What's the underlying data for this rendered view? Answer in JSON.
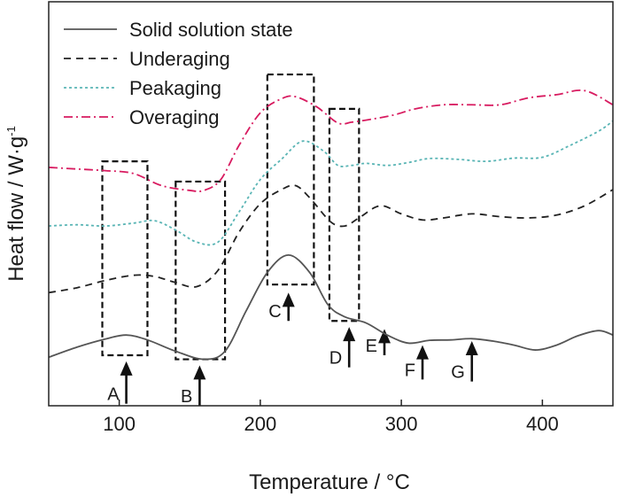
{
  "chart_data": {
    "type": "line",
    "xlabel": "Temperature / °C",
    "ylabel": "Heat flow / W·g",
    "ylabel_superscript": "-1",
    "xlim": [
      50,
      450
    ],
    "ylim": [
      0,
      100
    ],
    "xticks": [
      100,
      200,
      300,
      400
    ],
    "yticks": [],
    "grid": false,
    "legend_position": "top-left",
    "series": [
      {
        "name": "Solid solution state",
        "color": "#555555",
        "dash": "solid",
        "x": [
          50,
          70,
          90,
          105,
          120,
          140,
          160,
          175,
          190,
          205,
          220,
          235,
          248,
          260,
          275,
          290,
          305,
          320,
          335,
          350,
          365,
          380,
          395,
          410,
          425,
          440,
          450
        ],
        "y": [
          12,
          14.5,
          16.5,
          17.5,
          16.3,
          13.5,
          11.5,
          13.5,
          23.5,
          33,
          37.3,
          33,
          25,
          22,
          20.5,
          17.5,
          15.5,
          16.2,
          16.3,
          16.6,
          16,
          15,
          13.8,
          15,
          17.3,
          18.6,
          17.5
        ]
      },
      {
        "name": "Underaging",
        "color": "#222222",
        "dash": "8 6",
        "x": [
          50,
          70,
          90,
          110,
          125,
          140,
          155,
          170,
          185,
          200,
          215,
          225,
          235,
          250,
          260,
          270,
          285,
          300,
          315,
          330,
          350,
          370,
          390,
          410,
          430,
          450
        ],
        "y": [
          28,
          29.2,
          31,
          32.3,
          32,
          30.5,
          29.5,
          33.5,
          43,
          50,
          53.5,
          54.5,
          51.5,
          45.5,
          44.5,
          46.5,
          49.5,
          47.5,
          46,
          46.5,
          47.5,
          46.8,
          46.5,
          47.2,
          49.5,
          53.5
        ]
      },
      {
        "name": "Peakaging",
        "color": "#5ab5b5",
        "dash": "3 3",
        "x": [
          50,
          70,
          90,
          110,
          125,
          140,
          155,
          170,
          185,
          200,
          215,
          230,
          245,
          255,
          265,
          275,
          290,
          305,
          320,
          340,
          360,
          380,
          400,
          420,
          440,
          450
        ],
        "y": [
          44.5,
          44.8,
          44.5,
          45.2,
          45.8,
          43.5,
          40.5,
          40.5,
          48,
          56,
          61,
          65.5,
          63,
          59.5,
          59.5,
          60,
          59.5,
          60.2,
          61.2,
          61,
          60.5,
          61.3,
          61.5,
          64.5,
          68,
          70.5
        ]
      },
      {
        "name": "Overaging",
        "color": "#d81b60",
        "dash": "10 4 2 4",
        "x": [
          50,
          70,
          90,
          110,
          130,
          150,
          160,
          172,
          185,
          200,
          215,
          225,
          240,
          255,
          265,
          280,
          295,
          310,
          330,
          350,
          370,
          390,
          410,
          430,
          450
        ],
        "y": [
          59,
          58.6,
          58.2,
          57.5,
          54.5,
          53.3,
          53.3,
          56,
          64.5,
          72.5,
          76,
          76.5,
          74,
          70,
          70.2,
          71,
          72,
          73.5,
          74.5,
          74.5,
          74.5,
          76.2,
          77,
          78,
          74.5
        ]
      }
    ],
    "annotations": {
      "boxes": [
        {
          "x0": 88,
          "x1": 120,
          "y0": 12.5,
          "y1": 60.5
        },
        {
          "x0": 140,
          "x1": 175,
          "y0": 11.5,
          "y1": 55.5
        },
        {
          "x0": 205,
          "x1": 238,
          "y0": 30,
          "y1": 82
        },
        {
          "x0": 249,
          "x1": 270,
          "y0": 21,
          "y1": 73.5
        }
      ],
      "arrows": [
        {
          "label": "A",
          "x": 105,
          "y_tip": 11,
          "y_tail": 0.5
        },
        {
          "label": "B",
          "x": 157,
          "y_tip": 10,
          "y_tail": 0
        },
        {
          "label": "C",
          "x": 220,
          "y_tip": 28,
          "y_tail": 21
        },
        {
          "label": "D",
          "x": 263,
          "y_tip": 19.5,
          "y_tail": 9.5
        },
        {
          "label": "E",
          "x": 288,
          "y_tip": 19,
          "y_tail": 12.5
        },
        {
          "label": "F",
          "x": 315,
          "y_tip": 15,
          "y_tail": 6.5
        },
        {
          "label": "G",
          "x": 350,
          "y_tip": 16,
          "y_tail": 6
        }
      ]
    }
  }
}
